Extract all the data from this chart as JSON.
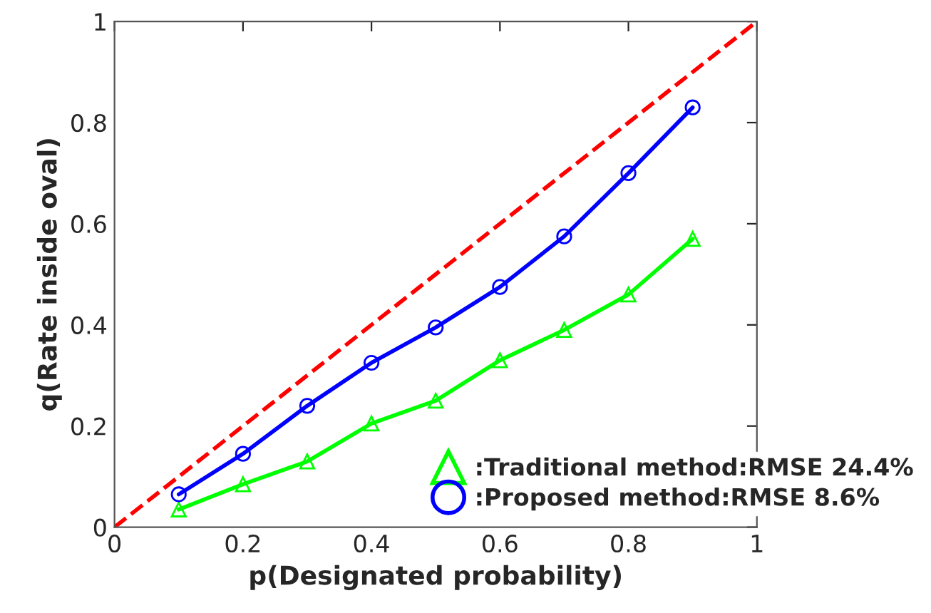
{
  "chart_data": {
    "type": "line",
    "xlabel": "p(Designated probability)",
    "ylabel": "q(Rate inside oval)",
    "xlim": [
      0,
      1
    ],
    "ylim": [
      0,
      1
    ],
    "xticks": [
      0,
      0.2,
      0.4,
      0.6,
      0.8,
      1
    ],
    "yticks": [
      0,
      0.2,
      0.4,
      0.6,
      0.8,
      1
    ],
    "grid": false,
    "legend": "bottom right",
    "series": [
      {
        "x": [
          0,
          1
        ],
        "values": [
          0,
          1
        ],
        "color": "#ff0000",
        "line_style": "dashed",
        "marker": "none"
      },
      {
        "name": ":Traditional method:RMSE 24.4%",
        "x": [
          0.1,
          0.2,
          0.3,
          0.4,
          0.5,
          0.6,
          0.7,
          0.8,
          0.9
        ],
        "values": [
          0.035,
          0.085,
          0.13,
          0.205,
          0.25,
          0.33,
          0.39,
          0.46,
          0.57
        ],
        "color": "#00ff00",
        "marker": "triangle",
        "line_style": "solid"
      },
      {
        "name": ":Proposed method:RMSE 8.6%",
        "x": [
          0.1,
          0.2,
          0.3,
          0.4,
          0.5,
          0.6,
          0.7,
          0.8,
          0.9
        ],
        "values": [
          0.065,
          0.145,
          0.24,
          0.325,
          0.395,
          0.475,
          0.575,
          0.7,
          0.83
        ],
        "color": "#0000ff",
        "marker": "circle",
        "line_style": "solid"
      }
    ]
  }
}
